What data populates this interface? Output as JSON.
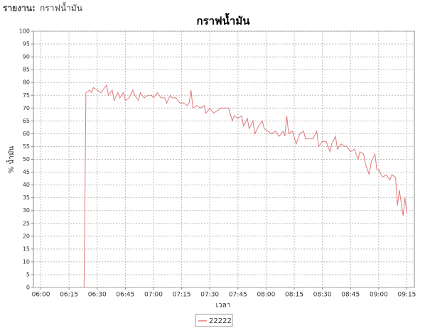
{
  "header": {
    "label": "รายงาน:",
    "text": "กราฟน้ำมัน"
  },
  "chart_data": {
    "type": "line",
    "title": "กราฟน้ำมัน",
    "x_label": "เวลา",
    "y_label": "% น้ำมัน",
    "x": [
      "06:23",
      "06:24",
      "06:26",
      "06:27",
      "06:28",
      "06:30",
      "06:32",
      "06:33",
      "06:35",
      "06:36",
      "06:38",
      "06:39",
      "06:41",
      "06:42",
      "06:44",
      "06:45",
      "06:47",
      "06:49",
      "06:50",
      "06:52",
      "06:53",
      "06:55",
      "06:57",
      "06:59",
      "07:00",
      "07:02",
      "07:04",
      "07:06",
      "07:07",
      "07:09",
      "07:10",
      "07:12",
      "07:14",
      "07:16",
      "07:18",
      "07:19",
      "07:20",
      "07:21",
      "07:23",
      "07:25",
      "07:27",
      "07:28",
      "07:30",
      "07:32",
      "07:34",
      "07:36",
      "07:38",
      "07:40",
      "07:42",
      "07:43",
      "07:45",
      "07:47",
      "07:48",
      "07:50",
      "07:51",
      "07:53",
      "07:54",
      "07:56",
      "07:58",
      "07:59",
      "08:01",
      "08:03",
      "08:05",
      "08:07",
      "08:09",
      "08:10",
      "08:11",
      "08:12",
      "08:14",
      "08:16",
      "08:18",
      "08:20",
      "08:21",
      "08:23",
      "08:25",
      "08:27",
      "08:28",
      "08:30",
      "08:32",
      "08:34",
      "08:35",
      "08:37",
      "08:38",
      "08:40",
      "08:42",
      "08:43",
      "08:45",
      "08:47",
      "08:49",
      "08:50",
      "08:52",
      "08:53",
      "08:55",
      "08:56",
      "08:58",
      "08:59",
      "09:00",
      "09:02",
      "09:04",
      "09:06",
      "09:07",
      "09:09",
      "09:10",
      "09:11",
      "09:13",
      "09:14",
      "09:15"
    ],
    "series": [
      {
        "name": "22222",
        "color": "#e07a7a",
        "values": [
          0,
          76,
          77,
          76,
          78,
          77,
          76,
          77,
          79,
          75,
          77,
          73,
          76,
          74,
          76,
          73,
          74,
          77,
          75,
          73,
          76,
          74,
          75,
          75,
          74,
          76,
          74,
          74,
          72,
          75,
          74,
          74,
          72,
          72,
          71,
          72,
          77,
          70,
          71,
          70,
          71,
          68,
          70,
          68,
          69,
          70,
          70,
          70,
          65,
          67,
          66,
          67,
          63,
          66,
          62,
          65,
          60,
          63,
          65,
          62,
          61,
          60,
          61,
          59,
          61,
          59,
          67,
          60,
          61,
          56,
          60,
          61,
          58,
          58,
          58,
          61,
          55,
          57,
          57,
          53,
          56,
          59,
          54,
          56,
          55,
          55,
          53,
          54,
          50,
          53,
          52,
          48,
          44,
          49,
          52,
          46,
          46,
          43,
          44,
          42,
          44,
          43,
          32,
          38,
          28,
          35,
          29
        ]
      }
    ],
    "xlim": [
      "05:56",
      "09:19"
    ],
    "xticks": [
      "06:00",
      "06:15",
      "06:30",
      "06:45",
      "07:00",
      "07:15",
      "07:30",
      "07:45",
      "08:00",
      "08:15",
      "08:30",
      "08:45",
      "09:00",
      "09:15"
    ],
    "ylim": [
      0,
      100
    ],
    "yticks": [
      0,
      5,
      10,
      15,
      20,
      25,
      30,
      35,
      40,
      45,
      50,
      55,
      60,
      65,
      70,
      75,
      80,
      85,
      90,
      95,
      100
    ],
    "grid": true,
    "legend": "bottom"
  }
}
